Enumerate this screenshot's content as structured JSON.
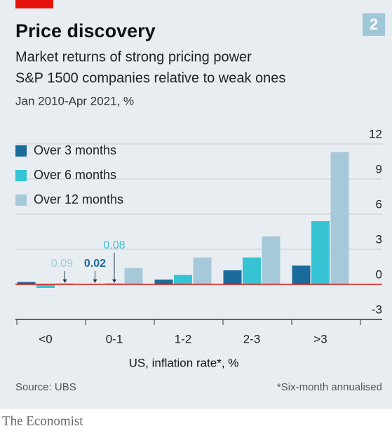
{
  "chart_data": {
    "type": "bar",
    "badge": "2",
    "title": "Price discovery",
    "subtitle": [
      "Market returns of strong pricing power",
      "S&P 1500 companies relative to weak ones"
    ],
    "period": "Jan 2010-Apr 2021, %",
    "x_label": "US, inflation rate*, %",
    "categories": [
      "<0",
      "0-1",
      "1-2",
      "2-3",
      ">3"
    ],
    "series": [
      {
        "name": "Over 3 months",
        "color": "#1b6a9c",
        "values": [
          0.2,
          0.02,
          0.4,
          1.2,
          1.6
        ]
      },
      {
        "name": "Over 6 months",
        "color": "#36c3d3",
        "values": [
          -0.3,
          0.08,
          0.8,
          2.3,
          5.4
        ]
      },
      {
        "name": "Over 12 months",
        "color": "#a6c9da",
        "values": [
          0.09,
          1.4,
          2.3,
          4.1,
          11.3
        ]
      }
    ],
    "ylim": [
      -3,
      12
    ],
    "yticks": [
      -3,
      0,
      3,
      6,
      9,
      12
    ],
    "grid": true,
    "legend": "top-left",
    "source": "Source: UBS",
    "footnote": "*Six-month annualised",
    "brand": "The Economist"
  }
}
